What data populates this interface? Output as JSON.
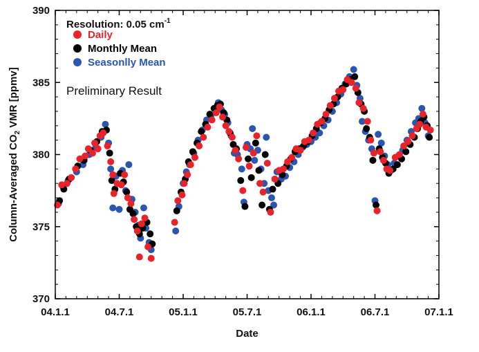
{
  "chart_data": {
    "type": "scatter",
    "title": "",
    "xlabel": "Date",
    "ylabel": "Column-Averaged CO",
    "ylabel_subscript": "2",
    "ylabel_suffix": " VMR [ppmv]",
    "x_unit": "months since 2004-01-01",
    "xlim": [
      0,
      36
    ],
    "ylim": [
      370,
      390
    ],
    "x_ticks": [
      {
        "x": 0,
        "label": "04.1.1"
      },
      {
        "x": 6,
        "label": "04.7.1"
      },
      {
        "x": 12,
        "label": "05.1.1"
      },
      {
        "x": 18,
        "label": "05.7.1"
      },
      {
        "x": 24,
        "label": "06.1.1"
      },
      {
        "x": 30,
        "label": "06.7.1"
      },
      {
        "x": 36,
        "label": "07.1.1"
      }
    ],
    "y_ticks": [
      {
        "y": 370,
        "label": "370"
      },
      {
        "y": 375,
        "label": "375"
      },
      {
        "y": 380,
        "label": "380"
      },
      {
        "y": 385,
        "label": "385"
      },
      {
        "y": 390,
        "label": "390"
      }
    ],
    "legend": {
      "title_prefix": "Resolution: 0.05 cm",
      "title_superscript": "-1",
      "placement": "top-left"
    },
    "annotation": "Preliminary Result",
    "series": [
      {
        "name": "Seasonlly Mean",
        "color": "#2a55b0",
        "points": [
          [
            0.3,
            376.6
          ],
          [
            0.7,
            377.8
          ],
          [
            1.2,
            378.2
          ],
          [
            2.0,
            378.8
          ],
          [
            2.6,
            379.3
          ],
          [
            3.2,
            380.0
          ],
          [
            3.8,
            380.5
          ],
          [
            4.3,
            381.2
          ],
          [
            4.7,
            382.1
          ],
          [
            5.0,
            380.8
          ],
          [
            5.2,
            379.0
          ],
          [
            5.4,
            376.3
          ],
          [
            5.7,
            378.5
          ],
          [
            6.0,
            376.2
          ],
          [
            6.3,
            378.9
          ],
          [
            6.6,
            377.5
          ],
          [
            6.9,
            379.3
          ],
          [
            7.2,
            376.9
          ],
          [
            7.5,
            376.0
          ],
          [
            7.8,
            375.1
          ],
          [
            8.0,
            374.2
          ],
          [
            8.3,
            376.3
          ],
          [
            8.5,
            374.9
          ],
          [
            8.8,
            373.9
          ],
          [
            9.0,
            373.4
          ],
          [
            11.3,
            374.7
          ],
          [
            11.6,
            376.4
          ],
          [
            12.0,
            378.0
          ],
          [
            12.3,
            378.8
          ],
          [
            12.6,
            379.3
          ],
          [
            13.0,
            380.1
          ],
          [
            13.4,
            381.0
          ],
          [
            13.8,
            381.7
          ],
          [
            14.2,
            382.4
          ],
          [
            14.6,
            382.7
          ],
          [
            15.0,
            383.2
          ],
          [
            15.3,
            383.6
          ],
          [
            15.6,
            383.1
          ],
          [
            15.9,
            382.8
          ],
          [
            16.2,
            382.2
          ],
          [
            16.5,
            381.3
          ],
          [
            16.8,
            380.1
          ],
          [
            17.1,
            380.0
          ],
          [
            17.5,
            379.0
          ],
          [
            17.7,
            376.7
          ],
          [
            18.0,
            380.7
          ],
          [
            18.3,
            380.4
          ],
          [
            18.5,
            381.8
          ],
          [
            18.7,
            379.6
          ],
          [
            19.0,
            380.3
          ],
          [
            19.3,
            379.0
          ],
          [
            19.6,
            378.0
          ],
          [
            19.8,
            381.2
          ],
          [
            20.0,
            377.5
          ],
          [
            20.3,
            377.0
          ],
          [
            20.5,
            376.5
          ],
          [
            20.8,
            378.8
          ],
          [
            21.2,
            378.3
          ],
          [
            21.6,
            378.5
          ],
          [
            22.0,
            379.1
          ],
          [
            22.4,
            379.5
          ],
          [
            22.8,
            380.0
          ],
          [
            23.2,
            380.5
          ],
          [
            23.6,
            380.7
          ],
          [
            24.0,
            380.9
          ],
          [
            24.4,
            381.2
          ],
          [
            24.8,
            381.5
          ],
          [
            25.2,
            382.0
          ],
          [
            25.6,
            382.4
          ],
          [
            26.0,
            383.0
          ],
          [
            26.4,
            383.6
          ],
          [
            26.8,
            384.2
          ],
          [
            27.2,
            384.9
          ],
          [
            27.6,
            385.4
          ],
          [
            28.0,
            385.9
          ],
          [
            28.3,
            384.8
          ],
          [
            28.6,
            383.9
          ],
          [
            28.8,
            382.3
          ],
          [
            29.1,
            381.6
          ],
          [
            29.4,
            381.0
          ],
          [
            29.7,
            380.4
          ],
          [
            30.0,
            376.8
          ],
          [
            30.3,
            381.4
          ],
          [
            30.6,
            380.8
          ],
          [
            30.9,
            379.9
          ],
          [
            31.2,
            379.3
          ],
          [
            31.5,
            378.9
          ],
          [
            31.8,
            379.4
          ],
          [
            32.2,
            379.9
          ],
          [
            32.6,
            380.3
          ],
          [
            33.0,
            381.0
          ],
          [
            33.4,
            381.6
          ],
          [
            33.8,
            382.2
          ],
          [
            34.1,
            382.5
          ],
          [
            34.4,
            383.2
          ],
          [
            34.7,
            382.2
          ],
          [
            35.0,
            381.3
          ]
        ]
      },
      {
        "name": "Monthly Mean",
        "color": "#000000",
        "points": [
          [
            0.4,
            376.8
          ],
          [
            0.8,
            377.6
          ],
          [
            1.3,
            378.3
          ],
          [
            2.1,
            379.2
          ],
          [
            2.7,
            379.6
          ],
          [
            3.3,
            380.3
          ],
          [
            3.9,
            380.9
          ],
          [
            4.4,
            381.6
          ],
          [
            4.8,
            381.7
          ],
          [
            5.1,
            380.1
          ],
          [
            5.3,
            378.2
          ],
          [
            5.6,
            377.6
          ],
          [
            6.1,
            378.7
          ],
          [
            6.4,
            378.1
          ],
          [
            6.7,
            377.4
          ],
          [
            7.0,
            376.2
          ],
          [
            7.3,
            375.9
          ],
          [
            7.6,
            375.0
          ],
          [
            7.9,
            374.5
          ],
          [
            8.2,
            374.9
          ],
          [
            8.6,
            375.3
          ],
          [
            8.9,
            374.5
          ],
          [
            9.1,
            373.8
          ],
          [
            11.4,
            376.1
          ],
          [
            11.8,
            377.4
          ],
          [
            12.2,
            378.3
          ],
          [
            12.5,
            379.5
          ],
          [
            12.9,
            380.2
          ],
          [
            13.3,
            380.8
          ],
          [
            13.7,
            381.6
          ],
          [
            14.1,
            382.1
          ],
          [
            14.5,
            382.8
          ],
          [
            14.9,
            383.2
          ],
          [
            15.2,
            383.4
          ],
          [
            15.5,
            383.5
          ],
          [
            15.8,
            382.9
          ],
          [
            16.1,
            382.4
          ],
          [
            16.4,
            381.5
          ],
          [
            16.7,
            380.7
          ],
          [
            17.0,
            380.4
          ],
          [
            17.4,
            378.2
          ],
          [
            17.8,
            376.4
          ],
          [
            18.1,
            379.7
          ],
          [
            18.4,
            378.4
          ],
          [
            18.8,
            380.8
          ],
          [
            19.1,
            378.9
          ],
          [
            19.4,
            376.5
          ],
          [
            19.7,
            380.0
          ],
          [
            20.1,
            376.2
          ],
          [
            20.4,
            377.6
          ],
          [
            20.9,
            378.0
          ],
          [
            21.3,
            378.6
          ],
          [
            21.7,
            379.2
          ],
          [
            22.1,
            379.7
          ],
          [
            22.5,
            380.2
          ],
          [
            22.9,
            380.4
          ],
          [
            23.3,
            380.6
          ],
          [
            23.7,
            380.9
          ],
          [
            24.1,
            381.3
          ],
          [
            24.5,
            381.8
          ],
          [
            24.9,
            382.2
          ],
          [
            25.3,
            382.5
          ],
          [
            25.7,
            383.1
          ],
          [
            26.1,
            383.5
          ],
          [
            26.5,
            384.0
          ],
          [
            26.9,
            384.6
          ],
          [
            27.3,
            384.9
          ],
          [
            27.7,
            385.2
          ],
          [
            28.1,
            385.4
          ],
          [
            28.4,
            384.3
          ],
          [
            28.7,
            383.5
          ],
          [
            29.0,
            383.0
          ],
          [
            29.2,
            381.8
          ],
          [
            29.5,
            381.2
          ],
          [
            29.8,
            379.6
          ],
          [
            30.1,
            376.5
          ],
          [
            30.4,
            380.4
          ],
          [
            30.7,
            379.8
          ],
          [
            31.0,
            379.4
          ],
          [
            31.3,
            378.7
          ],
          [
            31.7,
            379.0
          ],
          [
            32.1,
            379.3
          ],
          [
            32.5,
            379.7
          ],
          [
            32.9,
            380.2
          ],
          [
            33.3,
            380.7
          ],
          [
            33.7,
            381.2
          ],
          [
            34.0,
            381.8
          ],
          [
            34.3,
            382.3
          ],
          [
            34.6,
            382.6
          ],
          [
            34.9,
            382.0
          ],
          [
            35.1,
            381.2
          ]
        ]
      },
      {
        "name": "Daily",
        "color": "#e8242a",
        "points": [
          [
            0.2,
            376.5
          ],
          [
            0.6,
            377.9
          ],
          [
            1.1,
            378.0
          ],
          [
            1.5,
            378.4
          ],
          [
            1.9,
            379.0
          ],
          [
            2.3,
            379.7
          ],
          [
            2.8,
            379.9
          ],
          [
            3.1,
            380.4
          ],
          [
            3.5,
            380.1
          ],
          [
            3.7,
            380.8
          ],
          [
            4.0,
            380.4
          ],
          [
            4.2,
            381.3
          ],
          [
            4.5,
            381.5
          ],
          [
            4.9,
            380.6
          ],
          [
            5.2,
            379.5
          ],
          [
            5.4,
            378.6
          ],
          [
            5.5,
            377.3
          ],
          [
            5.8,
            378.0
          ],
          [
            6.2,
            377.9
          ],
          [
            6.5,
            378.6
          ],
          [
            6.8,
            377.0
          ],
          [
            7.1,
            376.6
          ],
          [
            7.4,
            375.5
          ],
          [
            7.7,
            374.7
          ],
          [
            7.9,
            372.9
          ],
          [
            8.1,
            375.2
          ],
          [
            8.4,
            375.6
          ],
          [
            8.7,
            373.6
          ],
          [
            9.0,
            372.8
          ],
          [
            11.2,
            375.3
          ],
          [
            11.5,
            376.8
          ],
          [
            11.9,
            377.2
          ],
          [
            12.1,
            378.0
          ],
          [
            12.4,
            378.6
          ],
          [
            12.7,
            379.3
          ],
          [
            13.1,
            379.8
          ],
          [
            13.5,
            380.6
          ],
          [
            13.9,
            381.2
          ],
          [
            14.3,
            381.9
          ],
          [
            14.7,
            382.4
          ],
          [
            15.1,
            382.9
          ],
          [
            15.4,
            383.3
          ],
          [
            15.7,
            382.6
          ],
          [
            16.0,
            382.0
          ],
          [
            16.3,
            381.6
          ],
          [
            16.6,
            381.2
          ],
          [
            16.9,
            380.3
          ],
          [
            17.2,
            379.7
          ],
          [
            17.6,
            377.5
          ],
          [
            17.9,
            380.5
          ],
          [
            18.2,
            379.2
          ],
          [
            18.6,
            380.1
          ],
          [
            18.9,
            381.3
          ],
          [
            19.2,
            378.0
          ],
          [
            19.5,
            377.4
          ],
          [
            19.9,
            379.4
          ],
          [
            20.2,
            376.0
          ],
          [
            20.6,
            378.3
          ],
          [
            21.0,
            378.9
          ],
          [
            21.4,
            379.0
          ],
          [
            21.8,
            379.5
          ],
          [
            22.2,
            379.8
          ],
          [
            22.6,
            380.4
          ],
          [
            23.0,
            380.3
          ],
          [
            23.4,
            380.9
          ],
          [
            23.8,
            381.0
          ],
          [
            24.2,
            381.5
          ],
          [
            24.6,
            382.1
          ],
          [
            25.0,
            382.3
          ],
          [
            25.4,
            382.8
          ],
          [
            25.8,
            383.4
          ],
          [
            26.2,
            383.9
          ],
          [
            26.6,
            384.4
          ],
          [
            27.0,
            384.5
          ],
          [
            27.4,
            385.2
          ],
          [
            27.8,
            385.0
          ],
          [
            28.2,
            384.6
          ],
          [
            28.5,
            383.6
          ],
          [
            28.9,
            383.2
          ],
          [
            29.3,
            382.3
          ],
          [
            29.6,
            381.0
          ],
          [
            29.9,
            380.1
          ],
          [
            30.2,
            376.1
          ],
          [
            30.5,
            380.2
          ],
          [
            30.8,
            379.6
          ],
          [
            31.1,
            379.0
          ],
          [
            31.4,
            378.9
          ],
          [
            31.9,
            379.8
          ],
          [
            32.3,
            380.0
          ],
          [
            32.7,
            380.6
          ],
          [
            33.1,
            380.9
          ],
          [
            33.5,
            381.3
          ],
          [
            33.9,
            381.8
          ],
          [
            34.2,
            382.1
          ],
          [
            34.5,
            382.8
          ],
          [
            34.8,
            381.9
          ],
          [
            35.2,
            381.7
          ]
        ]
      }
    ]
  }
}
